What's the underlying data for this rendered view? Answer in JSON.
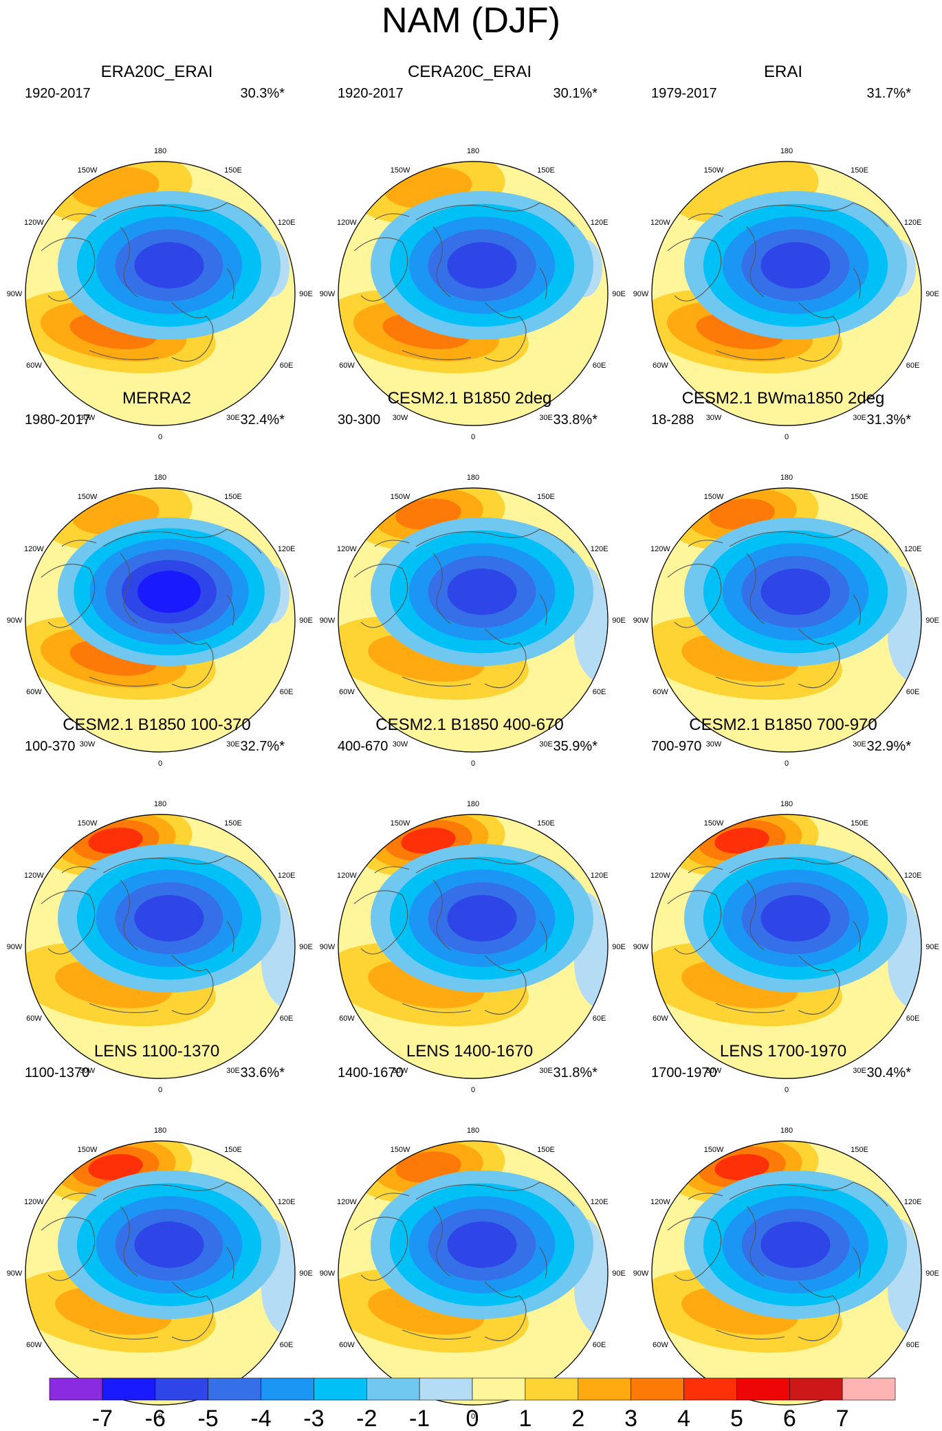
{
  "chart_data": {
    "type": "heatmap",
    "title": "NAM (DJF)",
    "projection": "north polar stereographic",
    "longitude_labels": [
      "180",
      "150E",
      "120E",
      "90E",
      "60E",
      "30E",
      "0",
      "30W",
      "60W",
      "90W",
      "120W",
      "150W"
    ],
    "colorbar": {
      "ticks": [
        -7,
        -6,
        -5,
        -4,
        -3,
        -2,
        -1,
        0,
        1,
        2,
        3,
        4,
        5,
        6,
        7
      ],
      "colors": [
        "#8a2be2",
        "#1a1aff",
        "#2e45e8",
        "#3570e8",
        "#1c96f5",
        "#00c0f5",
        "#70c8f0",
        "#b4dcf4",
        "#fff59a",
        "#fed434",
        "#feaa10",
        "#fe7a08",
        "#fe3008",
        "#ee0505",
        "#cc1818",
        "#ffb4b4"
      ]
    },
    "panels": [
      {
        "title": "ERA20C_ERAI",
        "period": "1920-2017",
        "explained": "30.3%*",
        "pac_high": 2.6,
        "atl_high": 3.2,
        "pole_low": -5.6,
        "east_neg": true,
        "pac_neg": false,
        "atl_neg": false
      },
      {
        "title": "CERA20C_ERAI",
        "period": "1920-2017",
        "explained": "30.1%*",
        "pac_high": 2.4,
        "atl_high": 3.2,
        "pole_low": -5.5,
        "east_neg": true,
        "pac_neg": false,
        "atl_neg": false
      },
      {
        "title": "ERAI",
        "period": "1979-2017",
        "explained": "31.7%*",
        "pac_high": 1.8,
        "atl_high": 3.6,
        "pole_low": -5.9,
        "east_neg": true,
        "pac_neg": false,
        "atl_neg": false
      },
      {
        "title": "MERRA2",
        "period": "1980-2017",
        "explained": "32.4%*",
        "pac_high": 2.6,
        "atl_high": 3.7,
        "pole_low": -6.0,
        "east_neg": true,
        "pac_neg": false,
        "atl_neg": false
      },
      {
        "title": "CESM2.1 B1850 2deg",
        "period": "30-300",
        "explained": "33.8%*",
        "pac_high": 3.7,
        "atl_high": 2.6,
        "pole_low": -5.9,
        "east_neg": true,
        "pac_neg": true,
        "atl_neg": true
      },
      {
        "title": "CESM2.1 BWma1850 2deg",
        "period": "18-288",
        "explained": "31.3%*",
        "pac_high": 3.4,
        "atl_high": 2.9,
        "pole_low": -5.9,
        "east_neg": true,
        "pac_neg": true,
        "atl_neg": true
      },
      {
        "title": "CESM2.1 B1850 100-370",
        "period": "100-370",
        "explained": "32.7%*",
        "pac_high": 4.6,
        "atl_high": 2.8,
        "pole_low": -5.5,
        "east_neg": true,
        "pac_neg": true,
        "atl_neg": true
      },
      {
        "title": "CESM2.1 B1850 400-670",
        "period": "400-670",
        "explained": "35.9%*",
        "pac_high": 4.6,
        "atl_high": 2.8,
        "pole_low": -5.9,
        "east_neg": true,
        "pac_neg": true,
        "atl_neg": true
      },
      {
        "title": "CESM2.1 B1850 700-970",
        "period": "700-970",
        "explained": "32.9%*",
        "pac_high": 4.3,
        "atl_high": 2.7,
        "pole_low": -5.8,
        "east_neg": true,
        "pac_neg": true,
        "atl_neg": true
      },
      {
        "title": "LENS 1100-1370",
        "period": "1100-1370",
        "explained": "33.6%*",
        "pac_high": 4.4,
        "atl_high": 2.4,
        "pole_low": -5.5,
        "east_neg": true,
        "pac_neg": true,
        "atl_neg": true
      },
      {
        "title": "LENS 1400-1670",
        "period": "1400-1670",
        "explained": "31.8%*",
        "pac_high": 3.7,
        "atl_high": 2.2,
        "pole_low": -5.8,
        "east_neg": true,
        "pac_neg": true,
        "atl_neg": true
      },
      {
        "title": "LENS 1700-1970",
        "period": "1700-1970",
        "explained": "30.4%*",
        "pac_high": 4.2,
        "atl_high": 2.4,
        "pole_low": -5.5,
        "east_neg": true,
        "pac_neg": true,
        "atl_neg": true
      }
    ]
  }
}
